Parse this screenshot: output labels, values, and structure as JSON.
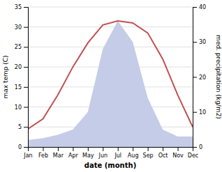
{
  "chart_data": {
    "type": "line",
    "categories": [
      "Jan",
      "Feb",
      "Mar",
      "Apr",
      "May",
      "Jun",
      "Jul",
      "Aug",
      "Sep",
      "Oct",
      "Nov",
      "Dec"
    ],
    "series": [
      {
        "type": "area",
        "axis": "y2",
        "color": "#c5cce8",
        "values": [
          2.0,
          2.5,
          3.5,
          5.0,
          10.0,
          28.0,
          36.0,
          30.0,
          14.0,
          5.0,
          3.0,
          3.0
        ]
      },
      {
        "type": "line",
        "color": "#c0504d",
        "values": [
          4.5,
          7.0,
          13.0,
          20.0,
          26.0,
          30.5,
          31.5,
          31.0,
          28.5,
          22.0,
          13.0,
          5.0
        ]
      }
    ],
    "xlabel": "date (month)",
    "ylabel": "max temp (C)",
    "y2label": "med. precipitation (kg/m2)",
    "ylim": [
      0,
      35
    ],
    "yticks": [
      0,
      5,
      10,
      15,
      20,
      25,
      30,
      35
    ],
    "y2lim": [
      0,
      40
    ],
    "y2ticks": [
      0,
      10,
      20,
      30,
      40
    ],
    "grid": true
  }
}
